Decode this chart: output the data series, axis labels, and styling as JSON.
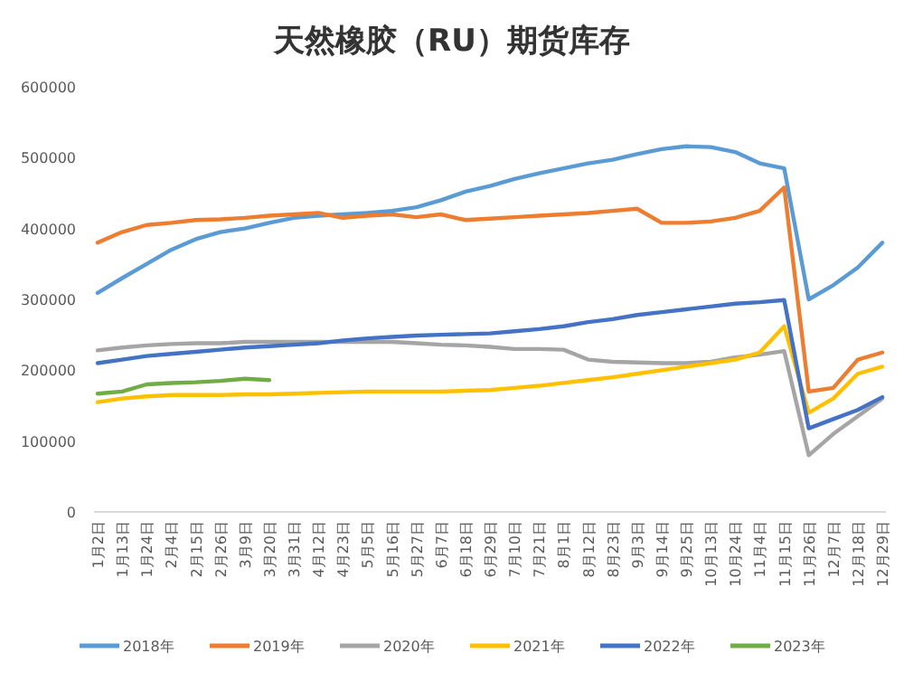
{
  "chart_data": {
    "type": "line",
    "title": "天然橡胶（RU）期货库存",
    "categories": [
      "1月2日",
      "1月13日",
      "1月24日",
      "2月4日",
      "2月15日",
      "2月26日",
      "3月9日",
      "3月20日",
      "3月31日",
      "4月12日",
      "4月23日",
      "5月5日",
      "5月16日",
      "5月27日",
      "6月7日",
      "6月18日",
      "6月29日",
      "7月10日",
      "7月21日",
      "8月1日",
      "8月12日",
      "8月23日",
      "9月3日",
      "9月14日",
      "9月25日",
      "10月13日",
      "10月24日",
      "11月4日",
      "11月15日",
      "11月26日",
      "12月7日",
      "12月18日",
      "12月29日"
    ],
    "series": [
      {
        "name": "2018年",
        "color": "#5b9bd5",
        "values": [
          309000,
          330000,
          350000,
          370000,
          385000,
          395000,
          400000,
          408000,
          415000,
          418000,
          420000,
          422000,
          425000,
          430000,
          440000,
          452000,
          460000,
          470000,
          478000,
          485000,
          492000,
          497000,
          505000,
          512000,
          516000,
          515000,
          508000,
          492000,
          485000,
          300000,
          320000,
          345000,
          380000
        ]
      },
      {
        "name": "2019年",
        "color": "#ed7d31",
        "values": [
          380000,
          395000,
          405000,
          408000,
          412000,
          413000,
          415000,
          418000,
          420000,
          422000,
          415000,
          418000,
          420000,
          416000,
          420000,
          412000,
          414000,
          416000,
          418000,
          420000,
          422000,
          425000,
          428000,
          408000,
          408000,
          410000,
          415000,
          425000,
          458000,
          170000,
          175000,
          215000,
          225000
        ]
      },
      {
        "name": "2020年",
        "color": "#a5a5a5",
        "values": [
          228000,
          232000,
          235000,
          237000,
          238000,
          238000,
          240000,
          240000,
          240000,
          240000,
          240000,
          240000,
          240000,
          238000,
          236000,
          235000,
          233000,
          230000,
          230000,
          229000,
          215000,
          212000,
          211000,
          210000,
          210000,
          212000,
          218000,
          222000,
          227000,
          80000,
          110000,
          135000,
          160000
        ]
      },
      {
        "name": "2021年",
        "color": "#ffc000",
        "values": [
          155000,
          160000,
          163000,
          165000,
          165000,
          165000,
          166000,
          166000,
          167000,
          168000,
          169000,
          170000,
          170000,
          170000,
          170000,
          171000,
          172000,
          175000,
          178000,
          182000,
          186000,
          190000,
          195000,
          200000,
          205000,
          210000,
          215000,
          225000,
          262000,
          140000,
          160000,
          195000,
          205000
        ]
      },
      {
        "name": "2022年",
        "color": "#4472c4",
        "values": [
          210000,
          215000,
          220000,
          223000,
          226000,
          229000,
          232000,
          234000,
          236000,
          238000,
          242000,
          245000,
          247000,
          249000,
          250000,
          251000,
          252000,
          255000,
          258000,
          262000,
          268000,
          272000,
          278000,
          282000,
          286000,
          290000,
          294000,
          296000,
          299000,
          118000,
          131000,
          144000,
          162000
        ]
      },
      {
        "name": "2023年",
        "color": "#70ad47",
        "values": [
          167000,
          170000,
          180000,
          182000,
          183000,
          185000,
          188000,
          186000,
          null,
          null,
          null,
          null,
          null,
          null,
          null,
          null,
          null,
          null,
          null,
          null,
          null,
          null,
          null,
          null,
          null,
          null,
          null,
          null,
          null,
          null,
          null,
          null,
          null
        ]
      }
    ],
    "ylim": [
      0,
      600000
    ],
    "yticks": [
      0,
      100000,
      200000,
      300000,
      400000,
      500000,
      600000
    ],
    "grid": false,
    "legend": "bottom",
    "marker": "none",
    "line_style": "solid"
  }
}
